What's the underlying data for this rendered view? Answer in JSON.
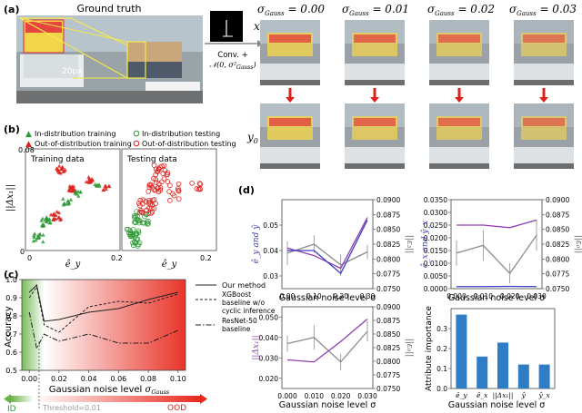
{
  "panel_labels": {
    "a": "(a)",
    "b": "(b)",
    "c": "(c)",
    "d": "(d)"
  },
  "panel_a": {
    "title": "Ground truth",
    "scale_label": "20px",
    "conv_line1": "Conv. +",
    "conv_line2": "\t𝒩(0, σ²_Gauss)",
    "row_x": "x",
    "row_y": "y₀",
    "sigma_headers": [
      "σ_Gauss = 0.00",
      "σ_Gauss = 0.01",
      "σ_Gauss = 0.02",
      "σ_Gauss = 0.03"
    ],
    "colors": {
      "arrow": "#e0201b",
      "highlight": "#f3e84a"
    }
  },
  "panel_b": {
    "legend": [
      "In-distribution training",
      "Out-of-distribution training",
      "In-distribution testing",
      "Out-of-distribution testing"
    ],
    "ylabel": "||Δx₁||",
    "xlabel": "ê_y",
    "ytop": "0.08",
    "yzero": "0",
    "x0": "0",
    "x1": "0.2",
    "sub_titles": [
      "Training data",
      "Testing data"
    ],
    "colors": {
      "id": "#2e9a37",
      "ood": "#e0201b"
    }
  },
  "panel_c": {
    "ylabel": "Accuracy",
    "xlabel": "Gaussian noise level σ_Gauss",
    "yticks": [
      "0.5",
      "0.6",
      "0.7",
      "0.8",
      "0.9",
      "1.0"
    ],
    "xticks": [
      "0.00",
      "0.02",
      "0.04",
      "0.06",
      "0.08",
      "0.10"
    ],
    "legend": [
      "Our method",
      "XGBoost baseline w/o cyclic inference",
      "ResNet-50 baseline"
    ],
    "id_label": "ID",
    "threshold_label": "Threshold=0.01",
    "ood_label": "OOD"
  },
  "panel_d": {
    "xlabel": "Gaussian noise level σ_Gauss",
    "tl": {
      "ylabel": "ê_y and ŷ",
      "y2label": "||ε₃||",
      "yticks": [
        "0.03",
        "0.04",
        "0.05"
      ],
      "y2ticks": [
        "0.0750",
        "0.0775",
        "0.0800",
        "0.0825",
        "0.0850",
        "0.0875",
        "0.0900"
      ],
      "xticks": [
        "0.00",
        "0.10",
        "0.20",
        "0.30"
      ]
    },
    "tr": {
      "ylabel": "ê_x and ŷ_x",
      "y2label": "||ε₀||",
      "yticks": [
        "0.0000",
        "0.0050",
        "0.0100",
        "0.0150",
        "0.0200",
        "0.0250",
        "0.0300",
        "0.0350"
      ],
      "y2ticks": [
        "0.0750",
        "0.0775",
        "0.0800",
        "0.0825",
        "0.0850",
        "0.0875",
        "0.0900"
      ],
      "xticks": [
        "0.000",
        "0.010",
        "0.020",
        "0.030"
      ]
    },
    "bl": {
      "ylabel": "||Δx₁||",
      "y2label": "||ε₀||",
      "yticks": [
        "0.020",
        "0.030",
        "0.040",
        "0.050"
      ],
      "y2ticks": [
        "0.0750",
        "0.0775",
        "0.0800",
        "0.0825",
        "0.0850",
        "0.0875",
        "0.0900"
      ],
      "xticks": [
        "0.000",
        "0.010",
        "0.020",
        "0.030"
      ]
    },
    "br": {
      "ylabel": "Attribute importance",
      "yticks": [
        "0.0",
        "0.1",
        "0.2",
        "0.3"
      ]
    },
    "colors": {
      "gray": "#8c8c8c",
      "purple": "#8e3fae",
      "blue": "#3a3fc4",
      "bar": "#2f7dc6"
    }
  },
  "chart_data": [
    {
      "type": "line",
      "title": "",
      "xlabel": "Gaussian noise level σ_Gauss",
      "ylabel": "Accuracy",
      "x": [
        0.0,
        0.005,
        0.01,
        0.02,
        0.04,
        0.06,
        0.08,
        0.1
      ],
      "ylim": [
        0.5,
        1.0
      ],
      "xlim": [
        -0.005,
        0.105
      ],
      "series": [
        {
          "name": "Our method",
          "values": [
            0.93,
            0.97,
            0.77,
            0.78,
            0.82,
            0.84,
            0.89,
            0.93
          ]
        },
        {
          "name": "XGBoost baseline w/o cyclic inference",
          "values": [
            0.9,
            0.96,
            0.75,
            0.71,
            0.85,
            0.88,
            0.87,
            0.92
          ]
        },
        {
          "name": "ResNet-50 baseline",
          "values": [
            0.82,
            0.62,
            0.7,
            0.66,
            0.7,
            0.65,
            0.65,
            0.72
          ]
        }
      ]
    },
    {
      "type": "bar",
      "xlabel": "Gaussian noise level σ_Gauss",
      "ylabel": "Attribute importance",
      "categories": [
        "ê_y",
        "ê_x",
        "||Δx₁||",
        "ŷ",
        "ŷ_x"
      ],
      "values": [
        0.37,
        0.16,
        0.23,
        0.12,
        0.12
      ],
      "ylim": [
        0,
        0.4
      ]
    },
    {
      "type": "line",
      "x": [
        0.0,
        0.1,
        0.2,
        0.3
      ],
      "ylim": [
        0.025,
        0.06
      ],
      "series": [
        {
          "name": "ê_y",
          "values": [
            0.04,
            0.04,
            0.031,
            0.052
          ]
        },
        {
          "name": "ŷ",
          "values": [
            0.041,
            0.038,
            0.033,
            0.053
          ]
        },
        {
          "name": "||ε₃||",
          "values": [
            0.081,
            0.0825,
            0.079,
            0.0812
          ]
        }
      ]
    },
    {
      "type": "line",
      "x": [
        0.0,
        0.01,
        0.02,
        0.03
      ],
      "ylim": [
        0.0,
        0.035
      ],
      "series": [
        {
          "name": "ê_x",
          "values": [
            0.025,
            0.025,
            0.024,
            0.027
          ]
        },
        {
          "name": "ŷ_x",
          "values": [
            0.014,
            0.017,
            0.006,
            0.021
          ]
        },
        {
          "name": "||ε₀||",
          "values": [
            0.0752,
            0.0753,
            0.0752,
            0.0753
          ]
        }
      ]
    },
    {
      "type": "line",
      "x": [
        0.0,
        0.01,
        0.02,
        0.03
      ],
      "ylim": [
        0.015,
        0.055
      ],
      "series": [
        {
          "name": "||Δx₁||",
          "values": [
            0.029,
            0.028,
            0.038,
            0.049
          ]
        },
        {
          "name": "||ε₀||",
          "values": [
            0.0815,
            0.0812,
            0.0792,
            0.0835
          ]
        }
      ]
    }
  ]
}
